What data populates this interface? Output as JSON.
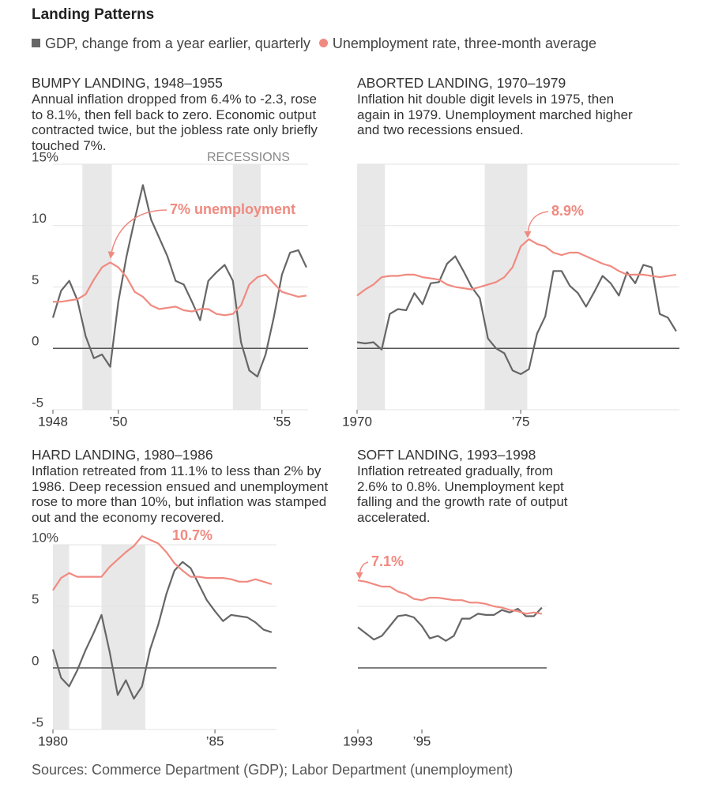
{
  "header": {
    "title": "Landing Patterns"
  },
  "footer": {
    "source": "Sources: Commerce Department (GDP); Labor Department (unemployment)"
  },
  "chart_data": [
    {
      "type": "line",
      "title": "BUMPY LANDING, 1948–1955",
      "subtitle": "Annual inflation dropped from 6.4% to -2.3, rose to 8.1%, then fell back to zero. Economic output contracted twice, but the jobless rate only briefly touched 7%.",
      "recession_label": "RECESSIONS",
      "annotation": "7% unemployment",
      "x": [
        1948,
        1948.25,
        1948.5,
        1948.75,
        1949,
        1949.25,
        1949.5,
        1949.75,
        1950,
        1950.25,
        1950.5,
        1950.75,
        1951,
        1951.25,
        1951.5,
        1951.75,
        1952,
        1952.25,
        1952.5,
        1952.75,
        1953,
        1953.25,
        1953.5,
        1953.75,
        1954,
        1954.25,
        1954.5,
        1954.75,
        1955,
        1955.25,
        1955.5,
        1955.75
      ],
      "series": [
        {
          "name": "GDP, change from a year earlier, quarterly",
          "color": "#666666",
          "values": [
            2.5,
            4.7,
            5.5,
            3.9,
            1.0,
            -0.8,
            -0.5,
            -1.5,
            3.8,
            7.5,
            10.5,
            13.3,
            10.5,
            9.0,
            7.5,
            5.5,
            5.2,
            3.8,
            2.3,
            5.5,
            6.2,
            6.8,
            5.5,
            0.5,
            -1.8,
            -2.3,
            -0.5,
            2.5,
            6.0,
            7.8,
            8.0,
            6.6
          ]
        },
        {
          "name": "Unemployment rate, three-month average",
          "color": "#f08a80",
          "values": [
            3.8,
            3.8,
            3.9,
            4.0,
            4.4,
            5.6,
            6.6,
            7.0,
            6.6,
            5.8,
            4.6,
            4.2,
            3.5,
            3.2,
            3.3,
            3.4,
            3.1,
            3.0,
            3.2,
            3.2,
            2.8,
            2.7,
            2.8,
            3.5,
            5.2,
            5.8,
            6.0,
            5.3,
            4.6,
            4.4,
            4.2,
            4.3
          ]
        }
      ],
      "recessions": [
        [
          1948.9,
          1949.8
        ],
        [
          1953.5,
          1954.35
        ]
      ],
      "xlim": [
        1948,
        1955.8
      ],
      "xticks": [
        1948,
        {
          "value": 1950,
          "label": "’50"
        },
        {
          "value": 1955,
          "label": "’55"
        }
      ],
      "ylim": [
        -5,
        15
      ],
      "yticks": [
        -5,
        0,
        5,
        10,
        {
          "value": 15,
          "label": "15%"
        }
      ],
      "ytick_labels": true,
      "grid": true
    },
    {
      "type": "line",
      "title": "ABORTED LANDING, 1970–1979",
      "subtitle": "Inflation hit double digit levels in 1975, then again in 1979. Unemployment marched higher and two recessions ensued.",
      "annotation": "8.9%",
      "x": [
        1970,
        1970.25,
        1970.5,
        1970.75,
        1971,
        1971.25,
        1971.5,
        1971.75,
        1972,
        1972.25,
        1972.5,
        1972.75,
        1973,
        1973.25,
        1973.5,
        1973.75,
        1974,
        1974.25,
        1974.5,
        1974.75,
        1975,
        1975.25,
        1975.5,
        1975.75,
        1976,
        1976.25,
        1976.5,
        1976.75,
        1977,
        1977.25,
        1977.5,
        1977.75,
        1978,
        1978.25,
        1978.5,
        1978.75,
        1979,
        1979.25,
        1979.5,
        1979.75
      ],
      "series": [
        {
          "color": "#666666",
          "values": [
            0.5,
            0.4,
            0.5,
            -0.1,
            2.8,
            3.2,
            3.1,
            4.5,
            3.6,
            5.3,
            5.4,
            6.9,
            7.5,
            6.3,
            5.0,
            4.1,
            0.8,
            0.0,
            -0.4,
            -1.8,
            -2.1,
            -1.7,
            1.2,
            2.6,
            6.3,
            6.3,
            5.1,
            4.5,
            3.4,
            4.6,
            5.9,
            5.3,
            4.3,
            6.2,
            5.3,
            6.8,
            6.6,
            2.8,
            2.5,
            1.4
          ]
        },
        {
          "color": "#f08a80",
          "values": [
            4.3,
            4.8,
            5.2,
            5.8,
            5.9,
            5.9,
            6.0,
            6.0,
            5.8,
            5.7,
            5.6,
            5.2,
            5.0,
            4.9,
            4.8,
            5.0,
            5.2,
            5.4,
            5.8,
            6.6,
            8.3,
            8.9,
            8.5,
            8.3,
            7.8,
            7.6,
            7.8,
            7.8,
            7.5,
            7.2,
            6.9,
            6.7,
            6.3,
            6.0,
            6.0,
            6.0,
            5.9,
            5.8,
            5.9,
            6.0
          ]
        }
      ],
      "recessions": [
        [
          1970,
          1970.85
        ],
        [
          1973.9,
          1975.2
        ]
      ],
      "xlim": [
        1970,
        1979.85
      ],
      "xticks": [
        1970,
        {
          "value": 1975,
          "label": "’75"
        }
      ],
      "ylim": [
        -5,
        15
      ],
      "yticks": [
        -5,
        0,
        5,
        10,
        15
      ],
      "ytick_labels": false,
      "grid": true
    },
    {
      "type": "line",
      "title": "HARD LANDING, 1980–1986",
      "subtitle": "Inflation retreated from 11.1% to less than 2% by 1986. Deep recession ensued and unemployment rose to more than 10%, but inflation was stamped out and the economy recovered.",
      "annotation": "10.7%",
      "x": [
        1980,
        1980.25,
        1980.5,
        1980.75,
        1981,
        1981.25,
        1981.5,
        1981.75,
        1982,
        1982.25,
        1982.5,
        1982.75,
        1983,
        1983.25,
        1983.5,
        1983.75,
        1984,
        1984.25,
        1984.5,
        1984.75,
        1985,
        1985.25,
        1985.5,
        1985.75,
        1986,
        1986.25,
        1986.5,
        1986.75
      ],
      "series": [
        {
          "color": "#666666",
          "values": [
            1.5,
            -0.8,
            -1.5,
            -0.2,
            1.4,
            2.8,
            4.3,
            1.3,
            -2.2,
            -1.0,
            -2.5,
            -1.5,
            1.5,
            3.5,
            6.0,
            7.9,
            8.6,
            8.1,
            6.8,
            5.5,
            4.6,
            3.8,
            4.3,
            4.2,
            4.1,
            3.7,
            3.1,
            2.9
          ]
        },
        {
          "color": "#f08a80",
          "values": [
            6.3,
            7.3,
            7.7,
            7.4,
            7.4,
            7.4,
            7.4,
            8.2,
            8.8,
            9.4,
            9.9,
            10.7,
            10.4,
            10.1,
            9.4,
            8.5,
            7.9,
            7.4,
            7.4,
            7.3,
            7.3,
            7.3,
            7.2,
            7.0,
            7.0,
            7.2,
            7.0,
            6.8
          ]
        }
      ],
      "recessions": [
        [
          1980,
          1980.5
        ],
        [
          1981.5,
          1982.85
        ]
      ],
      "xlim": [
        1980,
        1986.9
      ],
      "xticks": [
        1980,
        {
          "value": 1985,
          "label": "’85"
        }
      ],
      "ylim": [
        -5,
        10
      ],
      "yticks": [
        -5,
        0,
        5,
        {
          "value": 10,
          "label": "10%"
        }
      ],
      "ytick_labels": true,
      "grid": true
    },
    {
      "type": "line",
      "title": "SOFT LANDING, 1993–1998",
      "subtitle": "Inflation retreated gradually, from 2.6% to 0.8%. Unemployment kept falling and the growth rate of output accelerated.",
      "annotation": "7.1%",
      "x": [
        1993,
        1993.25,
        1993.5,
        1993.75,
        1994,
        1994.25,
        1994.5,
        1994.75,
        1995,
        1995.25,
        1995.5,
        1995.75,
        1996,
        1996.25,
        1996.5,
        1996.75,
        1997,
        1997.25,
        1997.5,
        1997.75,
        1998,
        1998.25,
        1998.5,
        1998.75
      ],
      "series": [
        {
          "color": "#666666",
          "values": [
            3.3,
            2.8,
            2.3,
            2.6,
            3.4,
            4.2,
            4.3,
            4.1,
            3.4,
            2.4,
            2.6,
            2.2,
            2.6,
            4.0,
            4.0,
            4.4,
            4.3,
            4.3,
            4.7,
            4.5,
            4.8,
            4.2,
            4.2,
            4.9
          ]
        },
        {
          "color": "#f08a80",
          "values": [
            7.1,
            7.0,
            6.8,
            6.6,
            6.6,
            6.2,
            6.0,
            5.6,
            5.5,
            5.7,
            5.7,
            5.6,
            5.5,
            5.5,
            5.3,
            5.3,
            5.2,
            5.0,
            4.9,
            4.7,
            4.6,
            4.4,
            4.5,
            4.4
          ]
        }
      ],
      "recessions": [],
      "xlim": [
        1993,
        1998.9
      ],
      "xticks": [
        1993,
        {
          "value": 1995,
          "label": "’95"
        }
      ],
      "ylim": [
        -5,
        10
      ],
      "yticks": [
        0,
        5
      ],
      "ytick_labels": false,
      "grid": true
    }
  ]
}
